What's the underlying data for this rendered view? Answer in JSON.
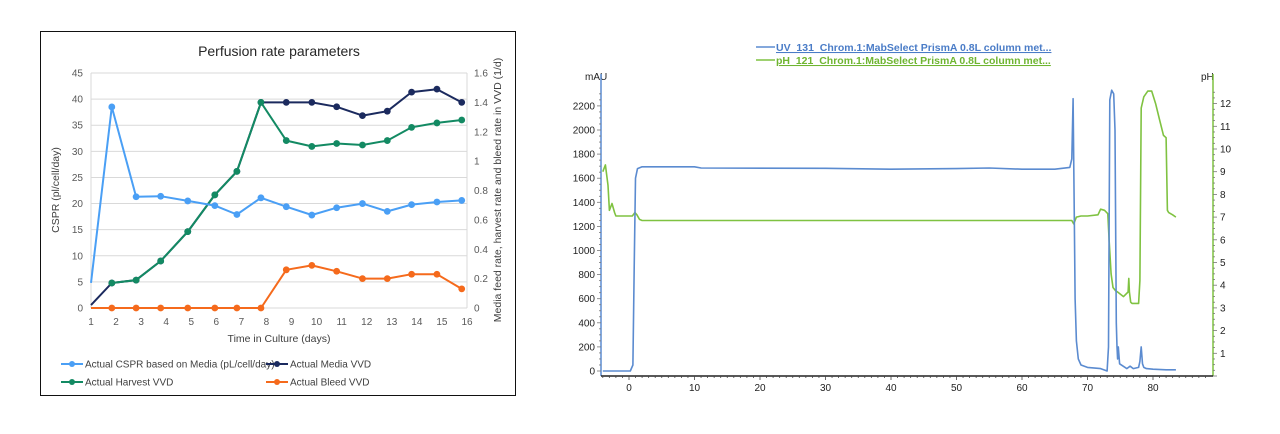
{
  "chart_data": [
    {
      "type": "line",
      "title": "Perfusion rate parameters",
      "xlabel": "Time in Culture (days)",
      "ylabel": "CSPR (pl/cell/day)",
      "y2label": "Media feed rate, harvest rate and bleed rate in VVD (1/d)",
      "xlim": [
        1,
        16
      ],
      "ylim": [
        0,
        45
      ],
      "y2lim": [
        0,
        1.6
      ],
      "x_ticks": [
        1,
        2,
        3,
        4,
        5,
        6,
        7,
        8,
        9,
        10,
        11,
        12,
        13,
        14,
        15,
        16
      ],
      "y_ticks": [
        0,
        5,
        10,
        15,
        20,
        25,
        30,
        35,
        40,
        45
      ],
      "y2_ticks": [
        "0",
        "0.2",
        "0.4",
        "0.6",
        "0.8",
        "1",
        "1.2",
        "1.4",
        "1.6"
      ],
      "grid": true,
      "legend_position": "bottom",
      "series": [
        {
          "name": "Actual CSPR based on Media (pL/cell/day)",
          "axis": "left",
          "color": "#4a9ff5",
          "x": [
            1.0,
            1.83,
            2.8,
            3.78,
            4.86,
            5.94,
            6.82,
            7.78,
            8.79,
            9.81,
            10.8,
            11.83,
            12.82,
            13.79,
            14.8,
            15.79
          ],
          "values": [
            4.8,
            38.5,
            21.3,
            21.4,
            20.5,
            19.6,
            17.9,
            21.1,
            19.4,
            17.8,
            19.2,
            20.0,
            18.5,
            19.8,
            20.3,
            20.6
          ],
          "markers_from_index": 1
        },
        {
          "name": "Actual Media VVD",
          "axis": "right",
          "color": "#1b2a5e",
          "x": [
            1.0,
            1.83,
            2.8,
            3.78,
            4.86,
            5.94,
            6.82,
            7.78,
            8.79,
            9.81,
            10.8,
            11.83,
            12.82,
            13.79,
            14.8,
            15.79
          ],
          "values": [
            0.02,
            0.17,
            0.19,
            0.32,
            0.52,
            0.77,
            0.93,
            1.4,
            1.4,
            1.4,
            1.37,
            1.31,
            1.34,
            1.47,
            1.49,
            1.4
          ],
          "markers_from_index": 1
        },
        {
          "name": "Actual Harvest VVD",
          "axis": "right",
          "color": "#138a63",
          "x": [
            1.83,
            2.8,
            3.78,
            4.86,
            5.94,
            6.82,
            7.78,
            8.79,
            9.81,
            10.8,
            11.83,
            12.82,
            13.79,
            14.8,
            15.79
          ],
          "values": [
            0.17,
            0.19,
            0.32,
            0.52,
            0.77,
            0.93,
            1.4,
            1.14,
            1.1,
            1.12,
            1.11,
            1.14,
            1.23,
            1.26,
            1.28
          ],
          "markers_from_index": 0
        },
        {
          "name": "Actual Bleed VVD",
          "axis": "right",
          "color": "#f56a1c",
          "x": [
            1.0,
            1.83,
            2.8,
            3.78,
            4.86,
            5.94,
            6.82,
            7.78,
            8.79,
            9.81,
            10.8,
            11.83,
            12.82,
            13.79,
            14.8,
            15.79
          ],
          "values": [
            0,
            0,
            0,
            0,
            0,
            0,
            0,
            0,
            0.26,
            0.29,
            0.25,
            0.2,
            0.2,
            0.23,
            0.23,
            0.13
          ],
          "markers_from_index": 1
        }
      ]
    },
    {
      "type": "line",
      "title": "",
      "xlabel": "",
      "ylabel": "mAU",
      "y2label": "pH",
      "xlim": [
        -4,
        89
      ],
      "ylim": [
        -50,
        2400
      ],
      "y2lim": [
        0,
        12.8
      ],
      "x_ticks": [
        0,
        10,
        20,
        30,
        40,
        50,
        60,
        70,
        80
      ],
      "y_ticks": [
        0,
        200,
        400,
        600,
        800,
        1000,
        1200,
        1400,
        1600,
        1800,
        2000,
        2200
      ],
      "y2_ticks": [
        1,
        2,
        3,
        4,
        5,
        6,
        7,
        8,
        9,
        10,
        11,
        12
      ],
      "grid": false,
      "legend_position": "top",
      "series": [
        {
          "name": "UV_131_Chrom.1:MabSelect PrismA 0.8L column met...",
          "axis": "left",
          "color": "#5b8bd0",
          "x": [
            -4,
            0.2,
            0.6,
            0.8,
            1.0,
            1.3,
            2.0,
            10,
            11,
            30,
            40,
            50,
            55,
            60,
            65,
            67.3,
            67.6,
            67.8,
            67.9,
            68.0,
            68.1,
            68.3,
            68.6,
            69,
            70,
            72,
            73.0,
            73.2,
            73.4,
            73.7,
            74.0,
            74.2,
            74.4,
            74.5,
            74.6,
            74.7,
            74.9,
            76,
            76.5,
            77,
            77.8,
            78.0,
            78.2,
            78.4,
            78.6,
            79,
            80,
            82,
            83.5
          ],
          "values": [
            0,
            0,
            50,
            860,
            1600,
            1680,
            1695,
            1695,
            1685,
            1682,
            1675,
            1680,
            1685,
            1675,
            1675,
            1690,
            1760,
            2260,
            1760,
            1200,
            600,
            250,
            100,
            50,
            30,
            20,
            0,
            200,
            2250,
            2330,
            2300,
            2000,
            400,
            200,
            100,
            200,
            60,
            20,
            40,
            20,
            30,
            80,
            200,
            60,
            30,
            20,
            15,
            10,
            10
          ],
          "note": "approximate trace read from image"
        },
        {
          "name": "pH_121_Chrom.1:MabSelect PrismA 0.8L column met...",
          "axis": "right",
          "color": "#7fc241",
          "x": [
            -4,
            -3.6,
            -3.2,
            -3.0,
            -2.6,
            -2.2,
            -2.0,
            -1.5,
            0,
            0.5,
            0.9,
            1.2,
            1.6,
            2,
            20,
            40,
            60,
            67.6,
            67.9,
            68.3,
            69,
            70,
            71.6,
            72,
            72.6,
            73.1,
            73.3,
            73.6,
            73.9,
            74.3,
            74.6,
            75.5,
            76.2,
            76.3,
            76.4,
            76.6,
            76.8,
            77.3,
            77.8,
            78.0,
            78.2,
            78.6,
            79.2,
            79.8,
            80.4,
            81.0,
            81.6,
            82.0,
            82.2,
            82.4,
            83.0,
            83.5
          ],
          "values": [
            9.0,
            9.3,
            8.4,
            7.3,
            7.6,
            7.2,
            7.05,
            7.05,
            7.05,
            7.05,
            7.2,
            7.1,
            6.9,
            6.85,
            6.85,
            6.85,
            6.85,
            6.85,
            6.7,
            7.0,
            7.05,
            7.05,
            7.1,
            7.35,
            7.3,
            7.15,
            6.0,
            4.5,
            3.9,
            3.75,
            3.7,
            3.5,
            3.7,
            4.3,
            3.7,
            3.25,
            3.2,
            3.2,
            3.2,
            4.2,
            11.8,
            12.3,
            12.55,
            12.55,
            12.0,
            11.3,
            10.6,
            10.5,
            7.3,
            7.2,
            7.1,
            7.0
          ],
          "note": "approximate trace read from image"
        }
      ]
    }
  ],
  "left_chart": {
    "title": "Perfusion rate parameters",
    "xlabel": "Time in Culture (days)",
    "ylabel": "CSPR (pl/cell/day)",
    "y2label": "Media feed rate, harvest rate and bleed rate in VVD (1/d)",
    "legend": [
      {
        "label": "Actual CSPR based on Media (pL/cell/day)",
        "color": "#4a9ff5"
      },
      {
        "label": "Actual Media VVD",
        "color": "#1b2a5e"
      },
      {
        "label": "Actual Harvest VVD",
        "color": "#138a63"
      },
      {
        "label": "Actual Bleed VVD",
        "color": "#f56a1c"
      }
    ]
  },
  "right_chart": {
    "ylabel": "mAU",
    "y2label": "pH",
    "legend": [
      {
        "label": "UV_131_Chrom.1:MabSelect PrismA 0.8L column met...",
        "color": "#5b8bd0"
      },
      {
        "label": "pH_121_Chrom.1:MabSelect PrismA 0.8L column met...",
        "color": "#7fc241"
      }
    ]
  }
}
